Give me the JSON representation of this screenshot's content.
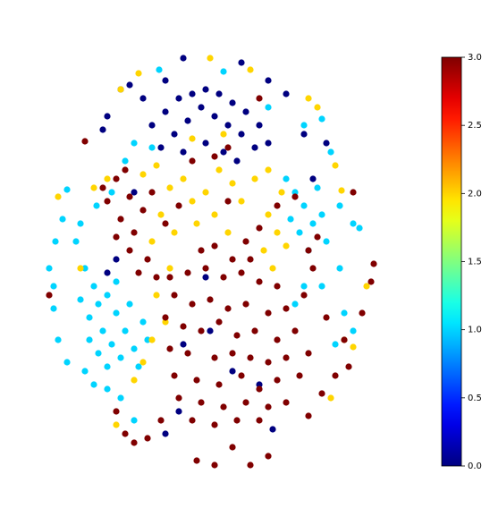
{
  "chart_data": {
    "type": "scatter",
    "xlim": [
      40,
      430
    ],
    "ylim": [
      50,
      535
    ],
    "clim": [
      0,
      3
    ],
    "colormap": "jet",
    "cticks": [
      {
        "value": 0,
        "label": "0.0"
      },
      {
        "value": 0.5,
        "label": "0.5"
      },
      {
        "value": 1,
        "label": "1.0"
      },
      {
        "value": 1.5,
        "label": "1.5"
      },
      {
        "value": 2,
        "label": "2.0"
      },
      {
        "value": 2.5,
        "label": "2.5"
      },
      {
        "value": 3,
        "label": "3.0"
      }
    ],
    "x": [
      95,
      105,
      110,
      100,
      120,
      130,
      115,
      125,
      140,
      135,
      150,
      110,
      145,
      160,
      100,
      120,
      90,
      155,
      165,
      130,
      60,
      55,
      62,
      75,
      70,
      90,
      85,
      60,
      65,
      75,
      95,
      105,
      120,
      135,
      150,
      170,
      178,
      250,
      300,
      340,
      360,
      370,
      380,
      395,
      402,
      380,
      385,
      375,
      395,
      108,
      125,
      140,
      150,
      320,
      330,
      340,
      350,
      360,
      335,
      345,
      365,
      325,
      355,
      340,
      330,
      360,
      170,
      185,
      200,
      215,
      230,
      245,
      260,
      275,
      290,
      300,
      195,
      210,
      225,
      240,
      255,
      270,
      285,
      180,
      205,
      230,
      250,
      265,
      160,
      145,
      135,
      120,
      115,
      185,
      205,
      270,
      300,
      320,
      340,
      365,
      235,
      230,
      205,
      260,
      290,
      200,
      185,
      120,
      130,
      305,
      350,
      150,
      160,
      175,
      190,
      205,
      215,
      230,
      245,
      260,
      270,
      285,
      300,
      315,
      300,
      310,
      295,
      320,
      305,
      180,
      195,
      220,
      240,
      255,
      170,
      190,
      175,
      185,
      170,
      160,
      150,
      235,
      155,
      135,
      280,
      345,
      355,
      375,
      382,
      385,
      395,
      370,
      130,
      215,
      250,
      120,
      105,
      90,
      65,
      410,
      190,
      210,
      230,
      250,
      270,
      290,
      310,
      195,
      215,
      235,
      255,
      275,
      300,
      320,
      185,
      205,
      225,
      245,
      265,
      285,
      310,
      190,
      210,
      240,
      260,
      280,
      300,
      320,
      195,
      220,
      245,
      270,
      290,
      310,
      200,
      225,
      250,
      275,
      300,
      320,
      215,
      240,
      265,
      290,
      115,
      130,
      145,
      160,
      135,
      150,
      165,
      145,
      130,
      175,
      120,
      155,
      140,
      170,
      185,
      200,
      225,
      255,
      275,
      240,
      260,
      290,
      280,
      345,
      350,
      355,
      340,
      330,
      345,
      335,
      215,
      240,
      255,
      290,
      330,
      310,
      140,
      150,
      165,
      180,
      220,
      240,
      260,
      280,
      300,
      130,
      345,
      360,
      375,
      390,
      405,
      418,
      415,
      385,
      55,
      95,
      395,
      365
    ],
    "y": [
      287,
      267,
      247,
      232,
      257,
      237,
      217,
      202,
      217,
      187,
      197,
      192,
      247,
      227,
      207,
      177,
      252,
      177,
      207,
      272,
      267,
      287,
      317,
      375,
      342,
      337,
      317,
      242,
      207,
      182,
      172,
      157,
      152,
      142,
      117,
      422,
      509,
      507,
      467,
      447,
      454,
      417,
      357,
      337,
      332,
      287,
      237,
      202,
      217,
      357,
      372,
      407,
      427,
      387,
      372,
      357,
      337,
      347,
      327,
      307,
      317,
      342,
      377,
      267,
      247,
      267,
      447,
      462,
      477,
      482,
      487,
      482,
      472,
      462,
      447,
      427,
      437,
      452,
      467,
      457,
      447,
      437,
      422,
      422,
      417,
      427,
      417,
      407,
      477,
      492,
      487,
      457,
      442,
      497,
      522,
      517,
      497,
      482,
      437,
      427,
      217,
      277,
      202,
      172,
      157,
      127,
      102,
      282,
      297,
      107,
      387,
      372,
      392,
      402,
      377,
      387,
      362,
      372,
      397,
      382,
      362,
      387,
      397,
      372,
      347,
      327,
      307,
      312,
      287,
      347,
      327,
      337,
      347,
      327,
      317,
      287,
      257,
      227,
      207,
      182,
      162,
      522,
      505,
      487,
      509,
      477,
      467,
      402,
      374,
      207,
      199,
      142,
      112,
      432,
      437,
      387,
      377,
      287,
      367,
      267,
      277,
      282,
      287,
      277,
      282,
      272,
      267,
      257,
      247,
      252,
      242,
      247,
      237,
      242,
      232,
      222,
      217,
      227,
      212,
      217,
      207,
      197,
      192,
      187,
      192,
      187,
      182,
      187,
      167,
      162,
      157,
      167,
      152,
      162,
      142,
      137,
      132,
      137,
      132,
      137,
      117,
      112,
      117,
      117,
      377,
      387,
      367,
      352,
      342,
      327,
      297,
      307,
      322,
      277,
      362,
      282,
      397,
      372,
      337,
      357,
      307,
      362,
      317,
      312,
      297,
      332,
      297,
      307,
      287,
      322,
      257,
      217,
      192,
      167,
      407,
      412,
      422,
      477,
      367,
      357,
      102,
      92,
      97,
      117,
      72,
      67,
      87,
      67,
      77,
      127,
      122,
      147,
      167,
      177,
      237,
      292,
      272,
      207,
      257,
      429,
      372,
      232
    ],
    "c": [
      1,
      1,
      1,
      1,
      1,
      1,
      1,
      1,
      1,
      1,
      1,
      1,
      1,
      1,
      1,
      1,
      1,
      1,
      1,
      1,
      1,
      1,
      1,
      1,
      1,
      1,
      1,
      1,
      1,
      1,
      1,
      1,
      1,
      1,
      1,
      1,
      1,
      1,
      1,
      1,
      1,
      1,
      1,
      1,
      1,
      1,
      1,
      1,
      1,
      1,
      1,
      1,
      1,
      1,
      1,
      1,
      1,
      1,
      1,
      1,
      1,
      1,
      1,
      1,
      1,
      1,
      0,
      0,
      0,
      0,
      0,
      0,
      0,
      0,
      0,
      0,
      0,
      0,
      0,
      0,
      0,
      0,
      0,
      0,
      0,
      0,
      0,
      0,
      0,
      0,
      0,
      0,
      0,
      0,
      0,
      0,
      0,
      0,
      0,
      0,
      0,
      0,
      0,
      0,
      0,
      0,
      0,
      0,
      0,
      0,
      0,
      0,
      2,
      2,
      2,
      2,
      2,
      2,
      2,
      2,
      2,
      2,
      2,
      2,
      2,
      2,
      2,
      2,
      2,
      2,
      2,
      2,
      2,
      2,
      2,
      2,
      2,
      2,
      2,
      2,
      2,
      2,
      2,
      2,
      2,
      2,
      2,
      2,
      2,
      2,
      2,
      2,
      2,
      2,
      2,
      2,
      2,
      2,
      2,
      2,
      3,
      3,
      3,
      3,
      3,
      3,
      3,
      3,
      3,
      3,
      3,
      3,
      3,
      3,
      3,
      3,
      3,
      3,
      3,
      3,
      3,
      3,
      3,
      3,
      3,
      3,
      3,
      3,
      3,
      3,
      3,
      3,
      3,
      3,
      3,
      3,
      3,
      3,
      3,
      3,
      3,
      3,
      3,
      3,
      3,
      3,
      3,
      3,
      3,
      3,
      3,
      3,
      3,
      3,
      3,
      3,
      3,
      3,
      3,
      3,
      3,
      3,
      3,
      3,
      3,
      3,
      3,
      3,
      3,
      3,
      3,
      3,
      3,
      3,
      3,
      3,
      3,
      3,
      3,
      3,
      3,
      3,
      3,
      3,
      3,
      3,
      3,
      3,
      3,
      3,
      3,
      3,
      3,
      3,
      3,
      3,
      3,
      3,
      3,
      3,
      3,
      3
    ]
  }
}
